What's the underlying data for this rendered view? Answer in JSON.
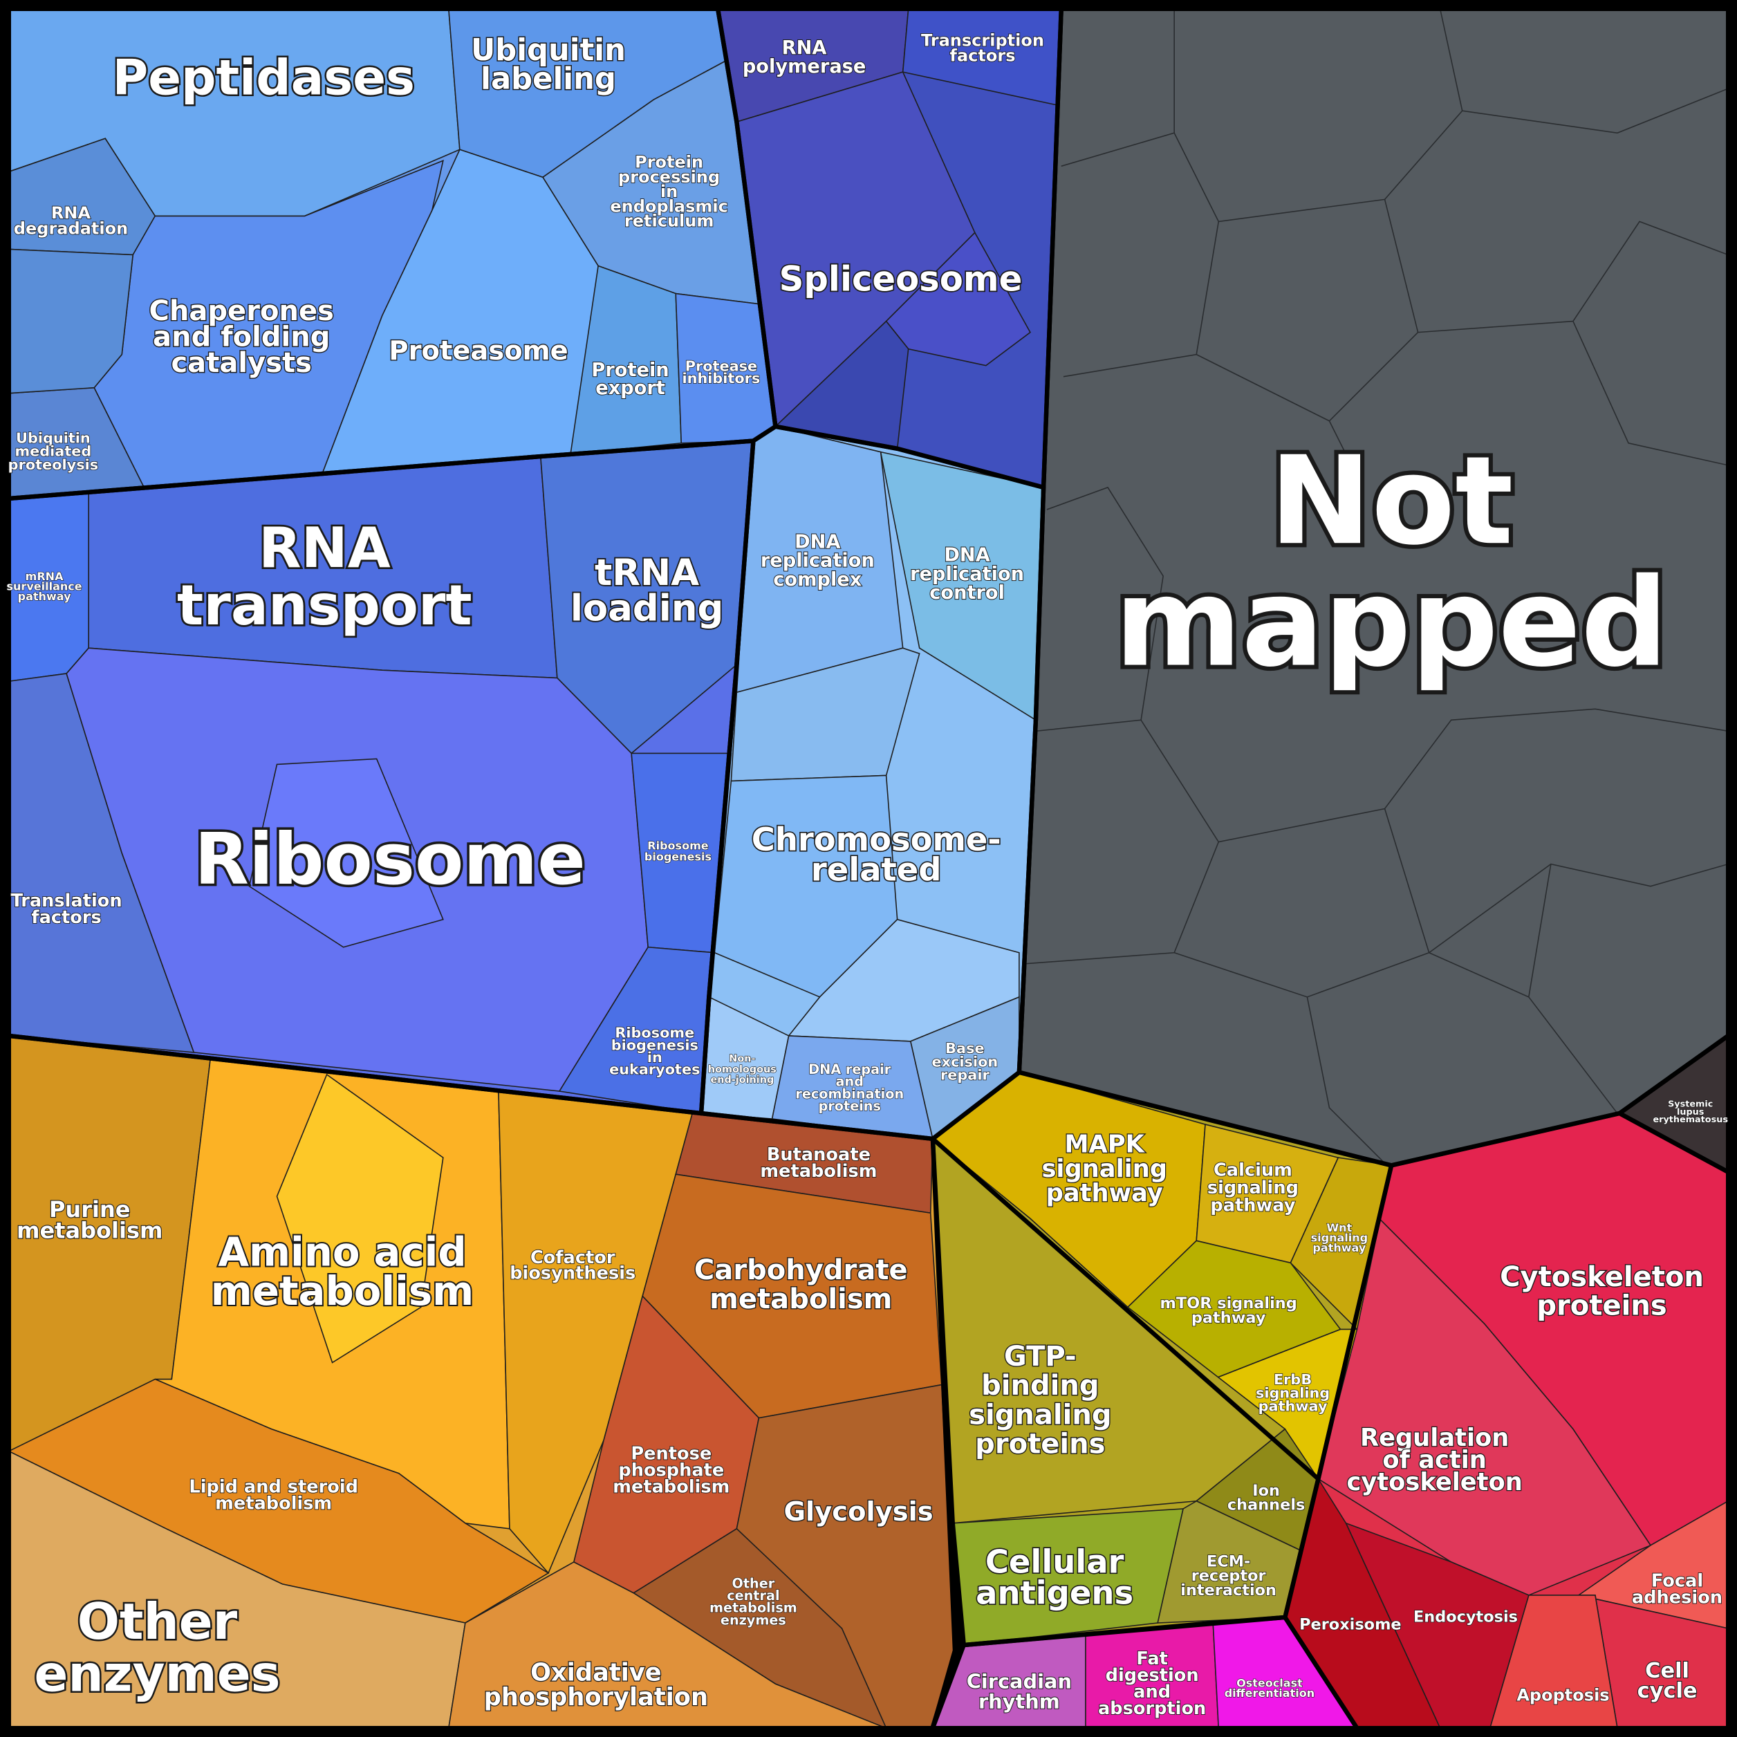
{
  "regions": [
    {
      "lines": [
        "Peptidases"
      ]
    },
    {
      "lines": [
        "Ubiquitin",
        "labeling"
      ]
    },
    {
      "lines": [
        "Protein",
        "processing",
        "in",
        "endoplasmic",
        "reticulum"
      ]
    },
    {
      "lines": [
        "RNA",
        "degradation"
      ]
    },
    {
      "lines": [
        "Chaperones",
        "and folding",
        "catalysts"
      ]
    },
    {
      "lines": [
        "Proteasome"
      ]
    },
    {
      "lines": [
        "Protein",
        "export"
      ]
    },
    {
      "lines": [
        "Protease",
        "inhibitors"
      ]
    },
    {
      "lines": [
        "Ubiquitin",
        "mediated",
        "proteolysis"
      ]
    },
    {
      "lines": [
        "RNA",
        "polymerase"
      ]
    },
    {
      "lines": [
        "Transcription",
        "factors"
      ]
    },
    {
      "lines": [
        "Spliceosome"
      ]
    },
    {
      "lines": [
        "Not",
        "mapped"
      ]
    },
    {
      "lines": [
        "Systemic",
        "lupus",
        "erythematosus"
      ]
    },
    {
      "lines": [
        "RNA",
        "transport"
      ]
    },
    {
      "lines": [
        "tRNA",
        "loading"
      ]
    },
    {
      "lines": [
        "mRNA",
        "surveillance",
        "pathway"
      ]
    },
    {
      "lines": [
        "Ribosome"
      ]
    },
    {
      "lines": [
        "Ribosome",
        "biogenesis"
      ]
    },
    {
      "lines": [
        "Translation",
        "factors"
      ]
    },
    {
      "lines": [
        "Ribosome",
        "biogenesis",
        "in",
        "eukaryotes"
      ]
    },
    {
      "lines": [
        "DNA",
        "replication",
        "complex"
      ]
    },
    {
      "lines": [
        "DNA",
        "replication",
        "control"
      ]
    },
    {
      "lines": [
        "Chromosome-",
        "related"
      ]
    },
    {
      "lines": [
        "Non-",
        "homologous",
        "end-joining"
      ]
    },
    {
      "lines": [
        "DNA repair",
        "and",
        "recombination",
        "proteins"
      ]
    },
    {
      "lines": [
        "Base",
        "excision",
        "repair"
      ]
    },
    {
      "lines": [
        "Purine",
        "metabolism"
      ]
    },
    {
      "lines": [
        "Amino acid",
        "metabolism"
      ]
    },
    {
      "lines": [
        "Cofactor",
        "biosynthesis"
      ]
    },
    {
      "lines": [
        "Lipid and steroid",
        "metabolism"
      ]
    },
    {
      "lines": [
        "Other",
        "enzymes"
      ]
    },
    {
      "lines": [
        "Oxidative",
        "phosphorylation"
      ]
    },
    {
      "lines": [
        "Butanoate",
        "metabolism"
      ]
    },
    {
      "lines": [
        "Carbohydrate",
        "metabolism"
      ]
    },
    {
      "lines": [
        "Pentose",
        "phosphate",
        "metabolism"
      ]
    },
    {
      "lines": [
        "Glycolysis"
      ]
    },
    {
      "lines": [
        "Other",
        "central",
        "metabolism",
        "enzymes"
      ]
    },
    {
      "lines": [
        "MAPK",
        "signaling",
        "pathway"
      ]
    },
    {
      "lines": [
        "Calcium",
        "signaling",
        "pathway"
      ]
    },
    {
      "lines": [
        "Wnt",
        "signaling",
        "pathway"
      ]
    },
    {
      "lines": [
        "mTOR signaling",
        "pathway"
      ]
    },
    {
      "lines": [
        "ErbB",
        "signaling",
        "pathway"
      ]
    },
    {
      "lines": [
        "GTP-",
        "binding",
        "signaling",
        "proteins"
      ]
    },
    {
      "lines": [
        "Ion",
        "channels"
      ]
    },
    {
      "lines": [
        "ECM-",
        "receptor",
        "interaction"
      ]
    },
    {
      "lines": [
        "Cellular",
        "antigens"
      ]
    },
    {
      "lines": [
        "Circadian",
        "rhythm"
      ]
    },
    {
      "lines": [
        "Fat",
        "digestion",
        "and",
        "absorption"
      ]
    },
    {
      "lines": [
        "Osteoclast",
        "differentiation"
      ]
    },
    {
      "lines": [
        "Cytoskeleton",
        "proteins"
      ]
    },
    {
      "lines": [
        "Regulation",
        "of actin",
        "cytoskeleton"
      ]
    },
    {
      "lines": [
        "Peroxisome"
      ]
    },
    {
      "lines": [
        "Endocytosis"
      ]
    },
    {
      "lines": [
        "Focal",
        "adhesion"
      ]
    },
    {
      "lines": [
        "Apoptosis"
      ]
    },
    {
      "lines": [
        "Cell",
        "cycle"
      ]
    }
  ]
}
